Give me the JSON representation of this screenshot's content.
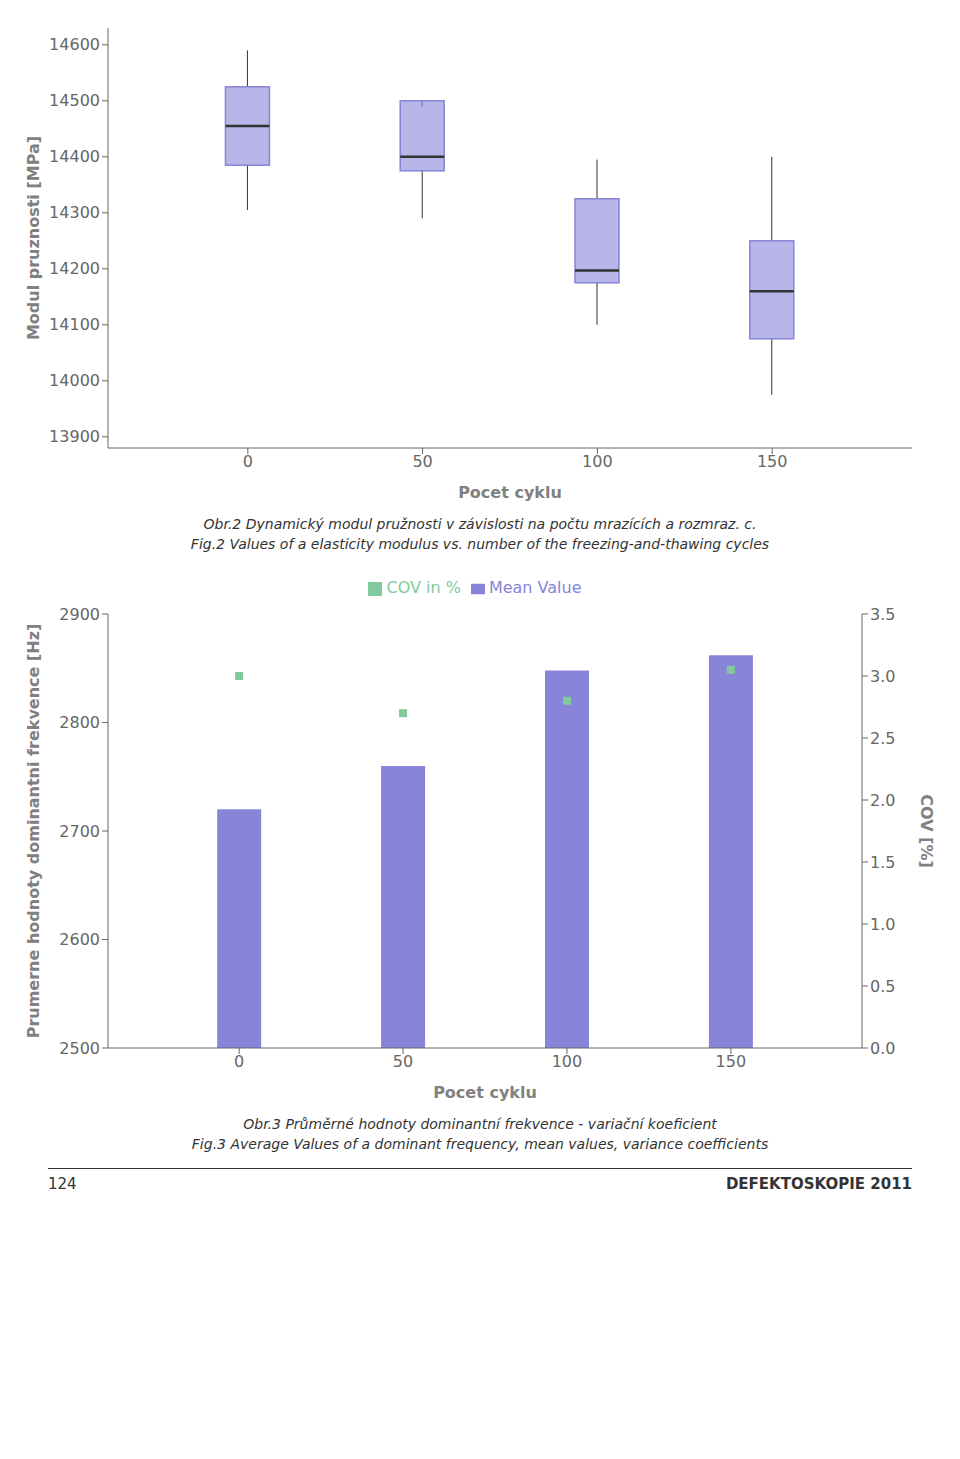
{
  "chart_data": [
    {
      "type": "box",
      "title": "Obr.2 Dynamický modul pružnosti v závislosti na počtu mrazících a rozmraz. c.",
      "subtitle": "Fig.2 Values of a elasticity modulus vs. number of the freezing-and-thawing cycles",
      "xlabel": "Pocet cyklu",
      "ylabel": "Modul pruznosti [MPa]",
      "x": [
        0,
        50,
        100,
        150
      ],
      "median": [
        14455,
        14400,
        14197,
        14160
      ],
      "q1": [
        14385,
        14375,
        14175,
        14075
      ],
      "q3": [
        14525,
        14500,
        14325,
        14250
      ],
      "whisker_low": [
        14305,
        14290,
        14100,
        13975
      ],
      "whisker_high": [
        14590,
        14490,
        14395,
        14400
      ],
      "color": "#8884d8",
      "xlim": [
        -40,
        190
      ],
      "xticks": [
        0,
        50,
        100,
        150
      ],
      "ylim": [
        13880,
        14630
      ],
      "yticks": [
        13900,
        14000,
        14100,
        14200,
        14300,
        14400,
        14500,
        14600
      ],
      "grid": false
    },
    {
      "type": "bar",
      "title": "Obr.3 Průměrné hodnoty dominantní frekvence - variační koeficient",
      "subtitle": "Fig.3 Average Values of a dominant frequency, mean values, variance coefficients",
      "xlabel": "Pocet cyklu",
      "ylabel": "Prumerne hodnoty dominantni frekvence [Hz]",
      "y2label": "COV [%]",
      "x": [
        0,
        50,
        100,
        150
      ],
      "series": [
        {
          "name": "Mean Value",
          "type": "bar",
          "color": "#8884d8",
          "values": [
            2720,
            2760,
            2848,
            2862
          ]
        },
        {
          "name": "COV in %",
          "type": "scatter",
          "marker": "square",
          "axis": "y2",
          "color": "#82ca9d",
          "values": [
            3.0,
            2.7,
            2.8,
            3.05
          ]
        }
      ],
      "xlim": [
        -40,
        190
      ],
      "xticks": [
        0,
        50,
        100,
        150
      ],
      "ylim": [
        2500,
        2900
      ],
      "yticks": [
        2500,
        2600,
        2700,
        2800,
        2900
      ],
      "y2lim": [
        0,
        3.5
      ],
      "y2ticks": [
        {
          "value": 0,
          "label": "0.0"
        },
        0.5,
        {
          "value": 1,
          "label": "1.0"
        },
        1.5,
        {
          "value": 2,
          "label": "2.0"
        },
        2.5,
        {
          "value": 3,
          "label": "3.0"
        },
        3.5
      ],
      "legend": "top",
      "grid": false,
      "annotations": [
        "124",
        "DEFEKTOSKOPIE 2011"
      ]
    }
  ]
}
